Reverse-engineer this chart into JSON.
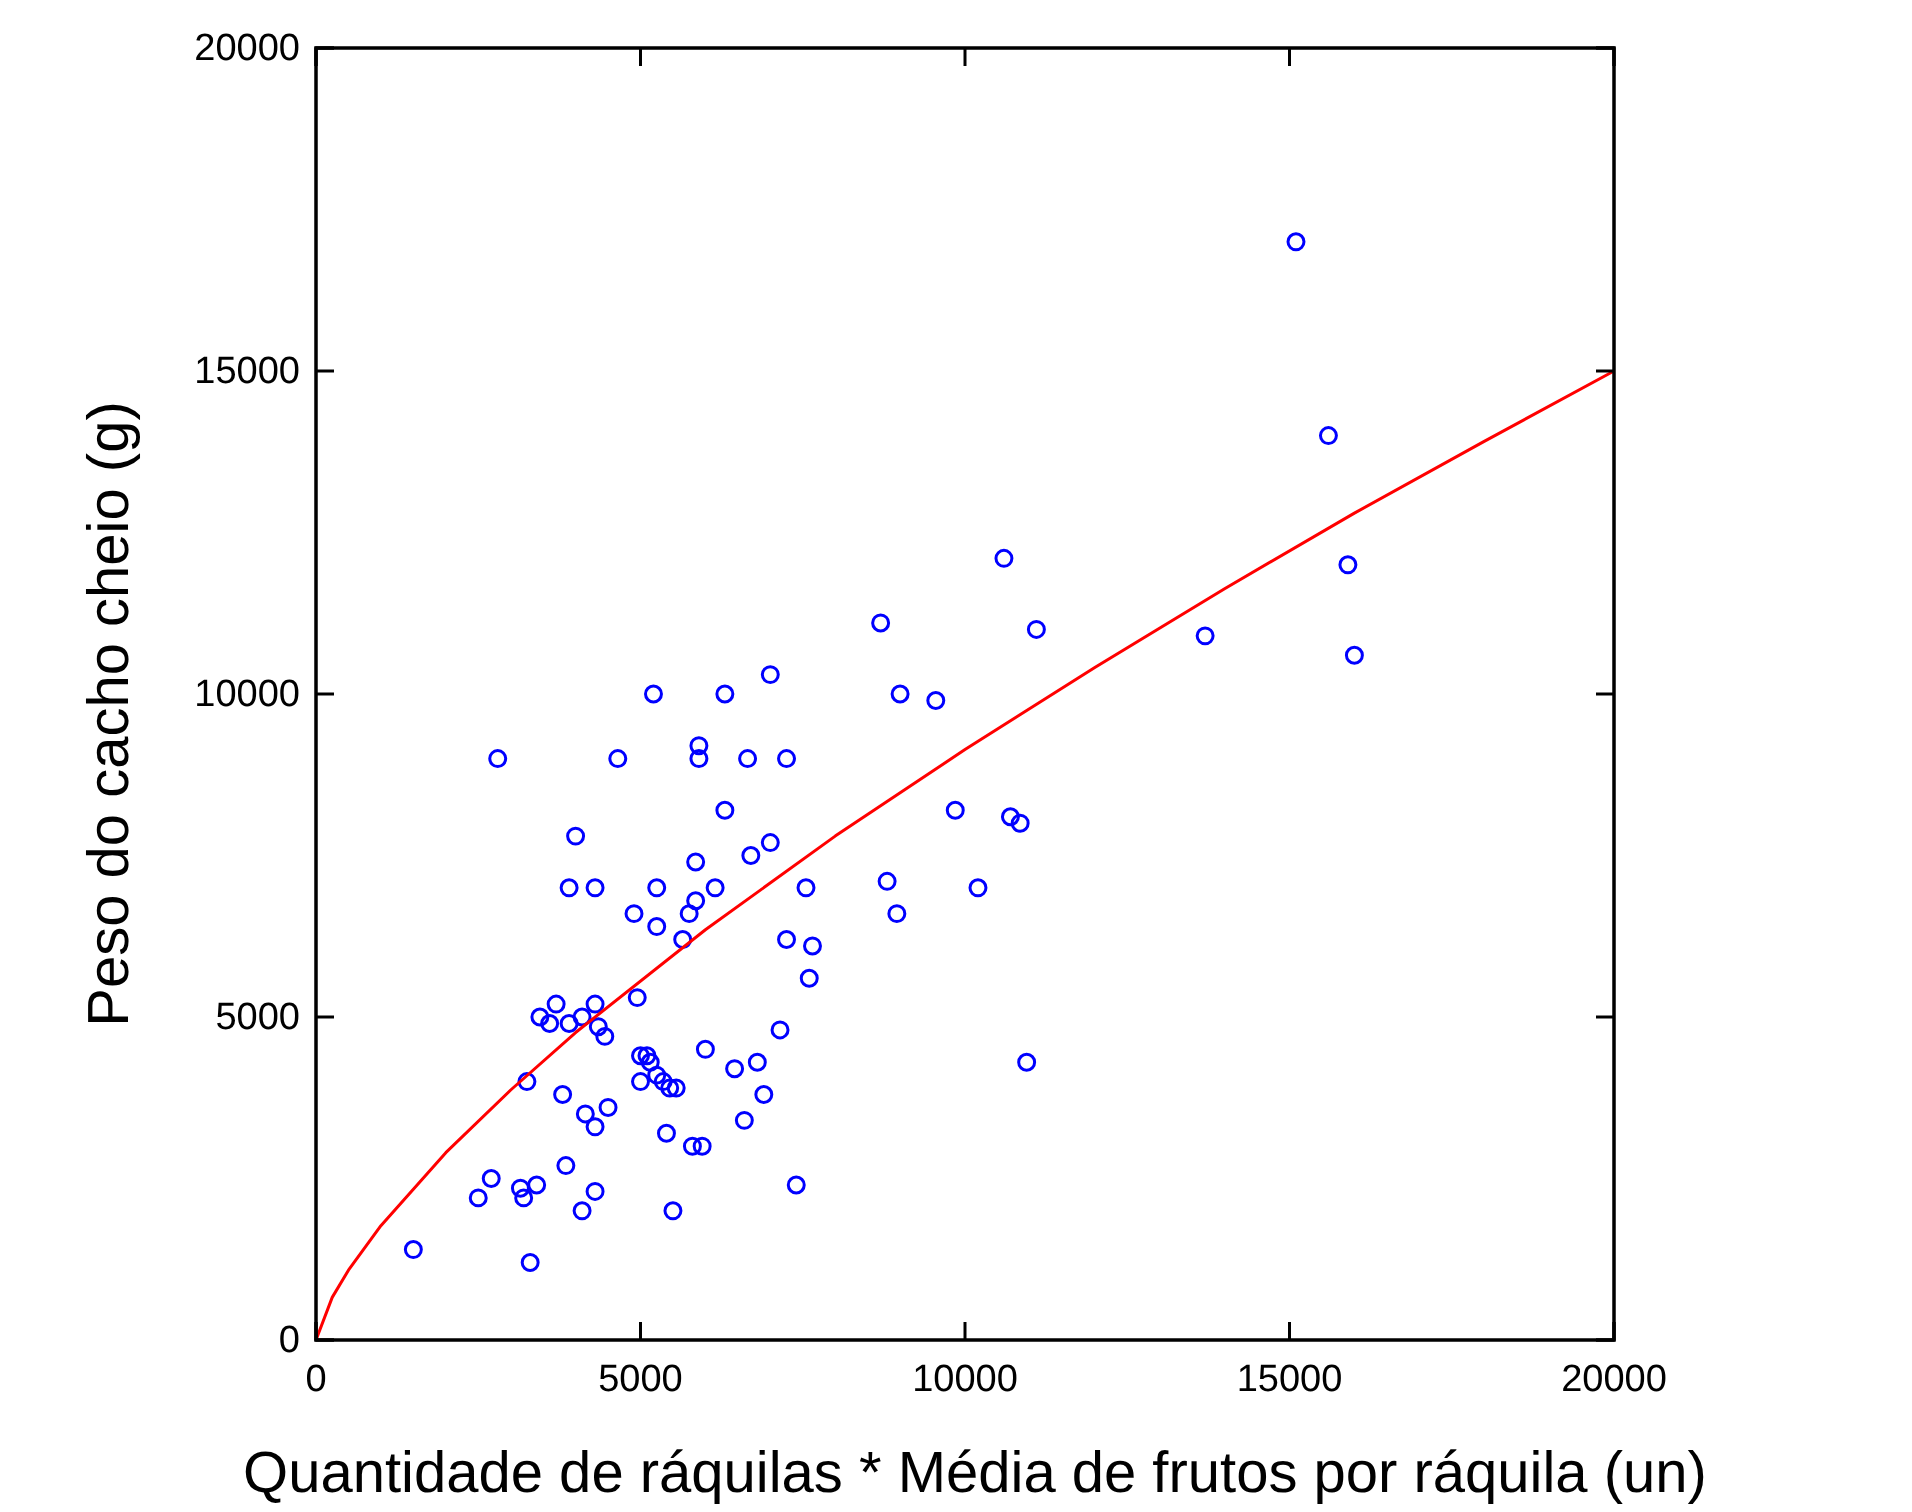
{
  "chart_data": {
    "type": "scatter",
    "xlabel": "Quantidade de ráquilas * Média de frutos por ráquila (un)",
    "ylabel": "Peso do cacho cheio (g)",
    "xlim": [
      0,
      20000
    ],
    "ylim": [
      0,
      20000
    ],
    "xticks": [
      0,
      5000,
      10000,
      15000,
      20000
    ],
    "yticks": [
      0,
      5000,
      10000,
      15000,
      20000
    ],
    "grid": false,
    "marker": "circle",
    "series": [
      {
        "color": "#0000ff",
        "x": [
          1500,
          3300,
          2800,
          2700,
          2500,
          3150,
          3200,
          3400,
          3250,
          3450,
          3600,
          3700,
          3900,
          4100,
          4300,
          4350,
          4450,
          3800,
          4150,
          4300,
          4500,
          3850,
          4100,
          4300,
          3900,
          4300,
          4000,
          4650,
          4900,
          4950,
          5000,
          5100,
          5000,
          5250,
          5150,
          5350,
          5250,
          5250,
          5200,
          5400,
          5550,
          5450,
          5500,
          5650,
          5750,
          5850,
          5850,
          5900,
          5900,
          6000,
          5800,
          5950,
          6150,
          6300,
          6300,
          6450,
          6600,
          6650,
          6700,
          6800,
          6900,
          7000,
          7000,
          7150,
          7250,
          7250,
          7400,
          7550,
          7600,
          7650,
          8700,
          8800,
          8950,
          9000,
          9550,
          9850,
          10200,
          10600,
          10700,
          10850,
          10950,
          11100,
          13700,
          15100,
          15600,
          15900,
          16000
        ],
        "values": [
          1400,
          1200,
          9000,
          2500,
          2200,
          2350,
          2200,
          2400,
          4000,
          5000,
          4900,
          5200,
          4900,
          5000,
          5200,
          4850,
          4700,
          3800,
          3500,
          3300,
          3600,
          2700,
          2000,
          2300,
          7000,
          7000,
          7800,
          9000,
          6600,
          5300,
          4400,
          4400,
          4000,
          4100,
          4300,
          4000,
          7000,
          6400,
          10000,
          3200,
          3900,
          3900,
          2000,
          6200,
          6600,
          6800,
          7400,
          9200,
          9000,
          4500,
          3000,
          3000,
          7000,
          8200,
          10000,
          4200,
          3400,
          9000,
          7500,
          4300,
          3800,
          10300,
          7700,
          4800,
          9000,
          6200,
          2400,
          7000,
          5600,
          6100,
          11100,
          7100,
          6600,
          10000,
          9900,
          8200,
          7000,
          12100,
          8100,
          8000,
          4300,
          11000,
          10900,
          17000,
          14000,
          12000,
          10600
        ]
      },
      {
        "type": "line",
        "color": "#ff0000",
        "marker": "none",
        "line_style": "solid",
        "x": [
          0,
          250,
          500,
          1000,
          2000,
          3000,
          4000,
          6000,
          8000,
          10000,
          12000,
          14000,
          16000,
          18000,
          20000
        ],
        "values": [
          0,
          660,
          1080,
          1770,
          2900,
          3870,
          4760,
          6350,
          7800,
          9140,
          10410,
          11630,
          12800,
          13910,
          15000
        ]
      }
    ]
  }
}
